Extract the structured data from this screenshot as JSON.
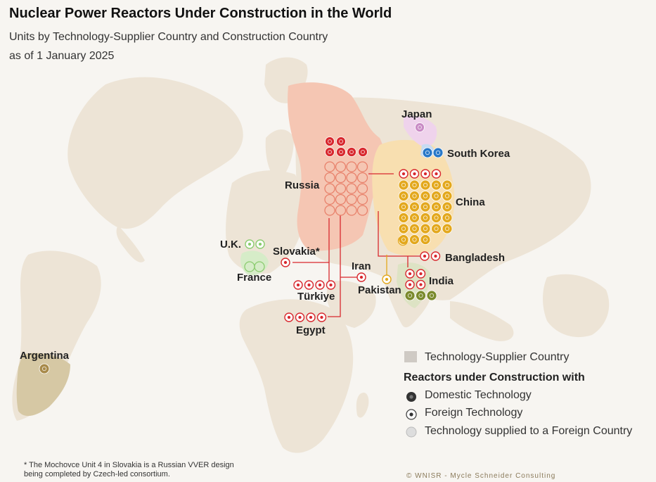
{
  "title": "Nuclear Power Reactors Under Construction in the World",
  "subtitle_line1": "Units by Technology-Supplier Country and Construction Country",
  "subtitle_line2": "as of 1 January 2025",
  "colors": {
    "land": "#ede4d6",
    "russia": "#f5c6b3",
    "china": "#f8dfb0",
    "japan": "#efd3ec",
    "domestic_russia": "#d8282e",
    "foreign_russia_ring": "#e8816b",
    "china_unit": "#e3a81d",
    "korea_unit": "#2878c8",
    "japan_unit": "#c98bc5",
    "uk_unit": "#8ccc70",
    "india_unit": "#7a8a2c",
    "argentina_unit": "#a88a4a"
  },
  "countries": [
    {
      "name": "Japan"
    },
    {
      "name": "South Korea"
    },
    {
      "name": "Russia"
    },
    {
      "name": "China"
    },
    {
      "name": "U.K."
    },
    {
      "name": "Slovakia*"
    },
    {
      "name": "France"
    },
    {
      "name": "Iran"
    },
    {
      "name": "Bangladesh"
    },
    {
      "name": "Türkiye"
    },
    {
      "name": "Pakistan"
    },
    {
      "name": "India"
    },
    {
      "name": "Egypt"
    },
    {
      "name": "Argentina"
    }
  ],
  "reactors": {
    "russia_domestic": 7,
    "russia_abroad_supplied": 20,
    "china_domestic": 28,
    "china_russian_tech": 4,
    "china_abroad_supplied": 1,
    "japan_domestic": 1,
    "south_korea_domestic": 2,
    "uk_french_tech": 2,
    "slovakia_russian_tech": 1,
    "turkiye_russian_tech": 4,
    "egypt_russian_tech": 4,
    "iran_russian_tech": 1,
    "bangladesh_russian_tech": 2,
    "pakistan_chinese_tech": 1,
    "india_russian_tech": 4,
    "india_domestic": 3,
    "argentina_domestic": 1
  },
  "legend": {
    "supplier": "Technology-Supplier Country",
    "heading": "Reactors under Construction with",
    "domestic": "Domestic Technology",
    "foreign": "Foreign Technology",
    "supplied": "Technology supplied to a Foreign Country"
  },
  "footnote_line1": "* The Mochovce Unit 4 in Slovakia is a Russian VVER design",
  "footnote_line2": "being completed by Czech-led consortium.",
  "credit": "© WNISR - Mycle Schneider Consulting"
}
